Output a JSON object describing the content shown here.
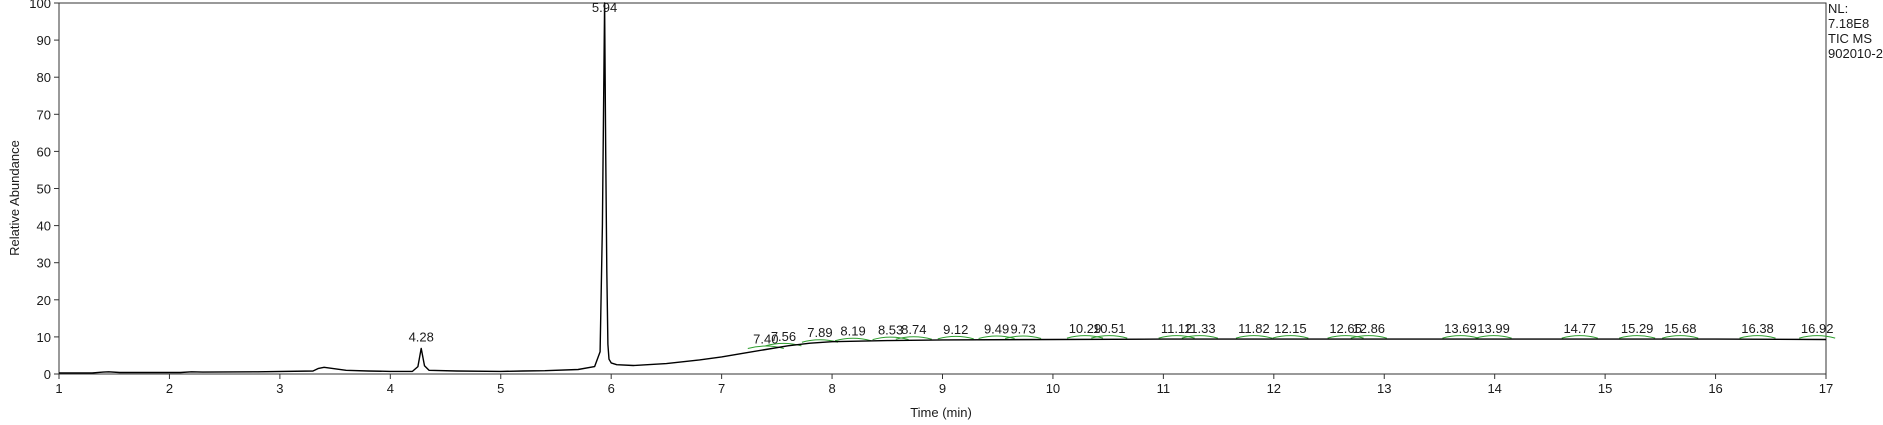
{
  "chart_data": {
    "type": "line",
    "xlabel": "Time (min)",
    "ylabel": "Relative Abundance",
    "xlim": [
      1,
      17
    ],
    "ylim": [
      0,
      100
    ],
    "x_ticks": [
      1,
      2,
      3,
      4,
      5,
      6,
      7,
      8,
      9,
      10,
      11,
      12,
      13,
      14,
      15,
      16,
      17
    ],
    "y_ticks": [
      0,
      10,
      20,
      30,
      40,
      50,
      60,
      70,
      80,
      90,
      100
    ],
    "grid": false,
    "header": [
      "NL:",
      "7.18E8",
      "TIC  MS",
      "902010-2"
    ],
    "colors": {
      "trace": "#000000",
      "integration": "#2e9e2e",
      "axis": "#333333",
      "text": "#1a1a1a"
    },
    "peaks": [
      {
        "label": "4.28",
        "x": 4.28,
        "y": 7.2
      },
      {
        "label": "5.94",
        "x": 5.94,
        "y": 100
      },
      {
        "label": "7.40",
        "x": 7.4,
        "y": 6.6
      },
      {
        "label": "7.56",
        "x": 7.56,
        "y": 7.3
      },
      {
        "label": "7.89",
        "x": 7.89,
        "y": 8.3
      },
      {
        "label": "8.19",
        "x": 8.19,
        "y": 8.7
      },
      {
        "label": "8.53",
        "x": 8.53,
        "y": 9.0
      },
      {
        "label": "8.74",
        "x": 8.74,
        "y": 9.1
      },
      {
        "label": "9.12",
        "x": 9.12,
        "y": 9.2
      },
      {
        "label": "9.49",
        "x": 9.49,
        "y": 9.3
      },
      {
        "label": "9.73",
        "x": 9.73,
        "y": 9.3
      },
      {
        "label": "10.29",
        "x": 10.29,
        "y": 9.4
      },
      {
        "label": "10.51",
        "x": 10.51,
        "y": 9.4
      },
      {
        "label": "11.12",
        "x": 11.12,
        "y": 9.4
      },
      {
        "label": "11.33",
        "x": 11.33,
        "y": 9.4
      },
      {
        "label": "11.82",
        "x": 11.82,
        "y": 9.4
      },
      {
        "label": "12.15",
        "x": 12.15,
        "y": 9.4
      },
      {
        "label": "12.65",
        "x": 12.65,
        "y": 9.4
      },
      {
        "label": "12.86",
        "x": 12.86,
        "y": 9.4
      },
      {
        "label": "13.69",
        "x": 13.69,
        "y": 9.4
      },
      {
        "label": "13.99",
        "x": 13.99,
        "y": 9.4
      },
      {
        "label": "14.77",
        "x": 14.77,
        "y": 9.4
      },
      {
        "label": "15.29",
        "x": 15.29,
        "y": 9.4
      },
      {
        "label": "15.68",
        "x": 15.68,
        "y": 9.4
      },
      {
        "label": "16.38",
        "x": 16.38,
        "y": 9.4
      },
      {
        "label": "16.92",
        "x": 16.92,
        "y": 9.4
      }
    ],
    "series": [
      {
        "x": [
          1.0,
          1.3,
          1.4,
          1.45,
          1.55,
          1.6,
          2.1,
          2.2,
          2.3,
          2.8,
          3.3,
          3.35,
          3.4,
          3.5,
          3.6,
          3.8,
          4.0,
          4.2,
          4.25,
          4.28,
          4.31,
          4.35,
          4.6,
          5.0,
          5.2,
          5.4,
          5.7,
          5.85,
          5.9,
          5.92,
          5.94,
          5.95,
          5.96,
          5.97,
          5.98,
          6.0,
          6.05,
          6.2,
          6.5,
          6.8,
          7.0,
          7.2,
          7.4,
          7.6,
          7.8,
          8.0,
          8.5,
          9.0,
          10.0,
          11.0,
          12.0,
          13.0,
          14.0,
          15.0,
          16.0,
          17.0
        ],
        "values": [
          0.3,
          0.3,
          0.5,
          0.6,
          0.4,
          0.4,
          0.4,
          0.6,
          0.5,
          0.6,
          0.8,
          1.5,
          1.8,
          1.4,
          1.0,
          0.8,
          0.7,
          0.7,
          2.0,
          6.9,
          2.2,
          1.0,
          0.8,
          0.7,
          0.8,
          0.9,
          1.2,
          2.0,
          6.0,
          40.0,
          100.0,
          60.0,
          28.0,
          8.0,
          4.0,
          3.0,
          2.5,
          2.3,
          2.8,
          3.8,
          4.6,
          5.6,
          6.6,
          7.6,
          8.3,
          8.7,
          9.0,
          9.2,
          9.3,
          9.4,
          9.4,
          9.4,
          9.4,
          9.4,
          9.4,
          9.3
        ]
      }
    ]
  }
}
